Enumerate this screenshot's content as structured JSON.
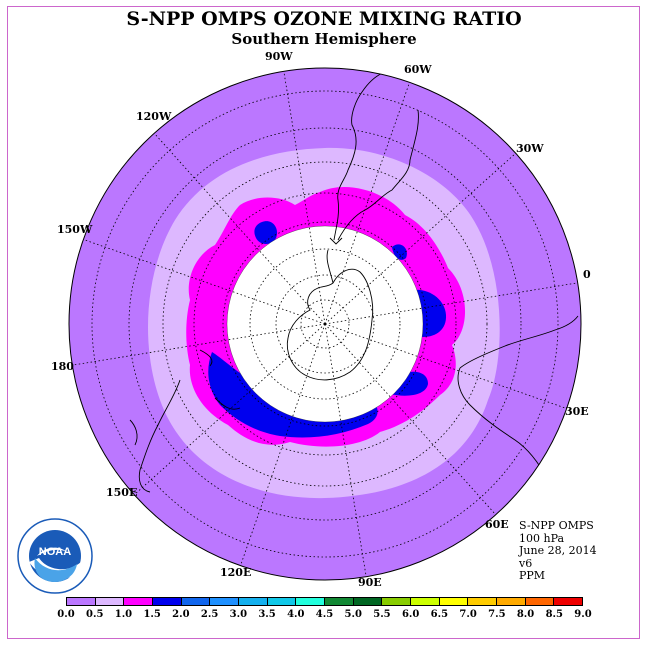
{
  "title": "S-NPP OMPS OZONE MIXING RATIO",
  "subtitle": "Southern Hemisphere",
  "longitude_labels": [
    "90W",
    "60W",
    "30W",
    "0",
    "30E",
    "60E",
    "90E",
    "120E",
    "150E",
    "180",
    "150W",
    "120W"
  ],
  "info": {
    "instrument": "S-NPP OMPS",
    "pressure": "100 hPa",
    "date": "June 28, 2014",
    "version": "v6",
    "units": "PPM"
  },
  "logo_text": "NOAA",
  "colorbar": {
    "labels": [
      "0.0",
      "0.5",
      "1.0",
      "1.5",
      "2.0",
      "2.5",
      "3.0",
      "3.5",
      "4.0",
      "4.5",
      "5.0",
      "5.5",
      "6.0",
      "6.5",
      "7.0",
      "7.5",
      "8.0",
      "8.5",
      "9.0"
    ],
    "colors": [
      "#bb77ff",
      "#ddb8ff",
      "#ff00ff",
      "#0000ee",
      "#1166ee",
      "#1e90ff",
      "#14b0ee",
      "#10c8e8",
      "#22ffdd",
      "#118833",
      "#006622",
      "#88cc00",
      "#ccff00",
      "#ffff00",
      "#ffcc00",
      "#ffaa00",
      "#ff6600",
      "#ee0000",
      "#886644"
    ]
  },
  "map_colors": {
    "background": "#bb77ff",
    "band_0_5": "#ddb8ff",
    "band_1_0": "#ff00ff",
    "band_1_5": "#0000ee",
    "polar_night": "#ffffff"
  }
}
